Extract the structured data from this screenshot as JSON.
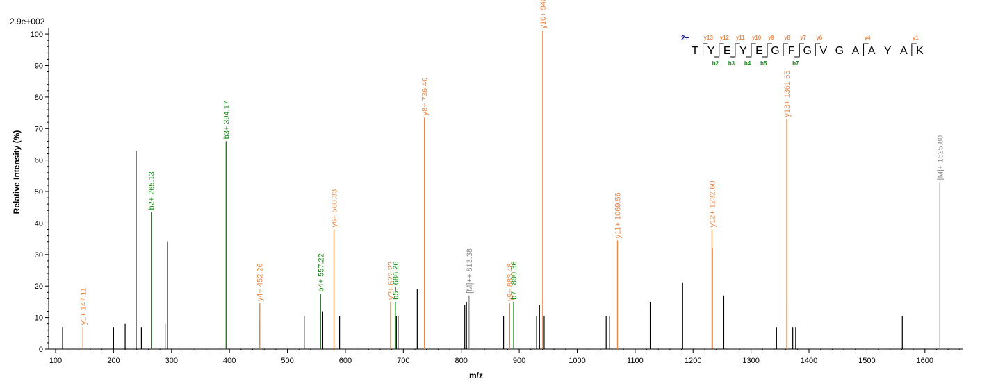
{
  "chart_data": {
    "type": "bar",
    "intensity_scale": "2.9e+002",
    "xlabel": "m/z",
    "ylabel": "Relative  Intensity (%)",
    "xlim": [
      88,
      1665
    ],
    "ylim": [
      0,
      102
    ],
    "x_ticks": [
      100,
      200,
      300,
      400,
      500,
      600,
      700,
      800,
      900,
      1000,
      1100,
      1200,
      1300,
      1400,
      1500,
      1600
    ],
    "y_ticks": [
      0,
      10,
      20,
      30,
      40,
      50,
      60,
      70,
      80,
      90,
      100
    ],
    "colors": {
      "y": "#e8894a",
      "b": "#1a8a1a",
      "M": "#8a8a8a",
      "unannotated": "#000000"
    },
    "unannotated_peaks": [
      {
        "mz": 112,
        "intensity": 7
      },
      {
        "mz": 200,
        "intensity": 7
      },
      {
        "mz": 220,
        "intensity": 8
      },
      {
        "mz": 239,
        "intensity": 63
      },
      {
        "mz": 248,
        "intensity": 7
      },
      {
        "mz": 289,
        "intensity": 8
      },
      {
        "mz": 293,
        "intensity": 34
      },
      {
        "mz": 452,
        "intensity": 9
      },
      {
        "mz": 529,
        "intensity": 10.5
      },
      {
        "mz": 561,
        "intensity": 12
      },
      {
        "mz": 590,
        "intensity": 10.5
      },
      {
        "mz": 688,
        "intensity": 10.5
      },
      {
        "mz": 691,
        "intensity": 10.5
      },
      {
        "mz": 724,
        "intensity": 19
      },
      {
        "mz": 806,
        "intensity": 14
      },
      {
        "mz": 809,
        "intensity": 15
      },
      {
        "mz": 873,
        "intensity": 10.5
      },
      {
        "mz": 930,
        "intensity": 10.5
      },
      {
        "mz": 935,
        "intensity": 14
      },
      {
        "mz": 943,
        "intensity": 10.5
      },
      {
        "mz": 1050,
        "intensity": 10.5
      },
      {
        "mz": 1056,
        "intensity": 10.5
      },
      {
        "mz": 1126,
        "intensity": 15
      },
      {
        "mz": 1182,
        "intensity": 21
      },
      {
        "mz": 1233,
        "intensity": 32
      },
      {
        "mz": 1253,
        "intensity": 17
      },
      {
        "mz": 1344,
        "intensity": 7
      },
      {
        "mz": 1362,
        "intensity": 17
      },
      {
        "mz": 1372,
        "intensity": 7
      },
      {
        "mz": 1377,
        "intensity": 7
      },
      {
        "mz": 1561,
        "intensity": 10.5
      }
    ],
    "annotated_peaks": [
      {
        "mz": 147.11,
        "intensity": 7,
        "series": "y",
        "label": "y1+ 147.11"
      },
      {
        "mz": 265.13,
        "intensity": 43.5,
        "series": "b",
        "label": "b2+ 265.13"
      },
      {
        "mz": 394.17,
        "intensity": 66,
        "series": "b",
        "label": "b3+ 394.17"
      },
      {
        "mz": 452.26,
        "intensity": 14.5,
        "series": "y",
        "label": "y4+ 452.26"
      },
      {
        "mz": 557.22,
        "intensity": 17.5,
        "series": "b",
        "label": "b4+ 557.22"
      },
      {
        "mz": 580.33,
        "intensity": 38,
        "series": "y",
        "label": "y6+ 580.33"
      },
      {
        "mz": 678.0,
        "intensity": 15,
        "series": "y",
        "label": "y?+ 6??.??"
      },
      {
        "mz": 686.26,
        "intensity": 15,
        "series": "b",
        "label": "b5+ 686.26"
      },
      {
        "mz": 736.4,
        "intensity": 73.5,
        "series": "y",
        "label": "y8+ 736.40"
      },
      {
        "mz": 813.38,
        "intensity": 17,
        "series": "M",
        "label": "[M]++ 813.38"
      },
      {
        "mz": 883.48,
        "intensity": 14.5,
        "series": "y",
        "label": "y9+ 883.48"
      },
      {
        "mz": 890.36,
        "intensity": 15,
        "series": "b",
        "label": "b7+ 890.36"
      },
      {
        "mz": 940.52,
        "intensity": 101,
        "series": "y",
        "label": "y10+ 940.52"
      },
      {
        "mz": 1069.56,
        "intensity": 34.5,
        "series": "y",
        "label": "y11+ 1069.56"
      },
      {
        "mz": 1232.6,
        "intensity": 38,
        "series": "y",
        "label": "y12+ 1232.60"
      },
      {
        "mz": 1361.65,
        "intensity": 73,
        "series": "y",
        "label": "y13+ 1361.65"
      },
      {
        "mz": 1625.8,
        "intensity": 53,
        "series": "M",
        "label": "[M]+ 1625.80"
      }
    ],
    "sequence": {
      "charge": "2+",
      "residues": [
        "T",
        "Y",
        "E",
        "Y",
        "E",
        "G",
        "F",
        "G",
        "V",
        "G",
        "A",
        "A",
        "Y",
        "A",
        "K"
      ],
      "y_ions": [
        {
          "after": 1,
          "label": "y13"
        },
        {
          "after": 2,
          "label": "y12"
        },
        {
          "after": 3,
          "label": "y11"
        },
        {
          "after": 4,
          "label": "y10"
        },
        {
          "after": 5,
          "label": "y9"
        },
        {
          "after": 6,
          "label": "y8"
        },
        {
          "after": 7,
          "label": "y7"
        },
        {
          "after": 8,
          "label": "y6"
        },
        {
          "after": 11,
          "label": "y4"
        },
        {
          "after": 14,
          "label": "y1"
        }
      ],
      "b_ions": [
        {
          "after": 2,
          "label": "b2"
        },
        {
          "after": 3,
          "label": "b3"
        },
        {
          "after": 4,
          "label": "b4"
        },
        {
          "after": 5,
          "label": "b5"
        },
        {
          "after": 7,
          "label": "b7"
        }
      ]
    }
  }
}
